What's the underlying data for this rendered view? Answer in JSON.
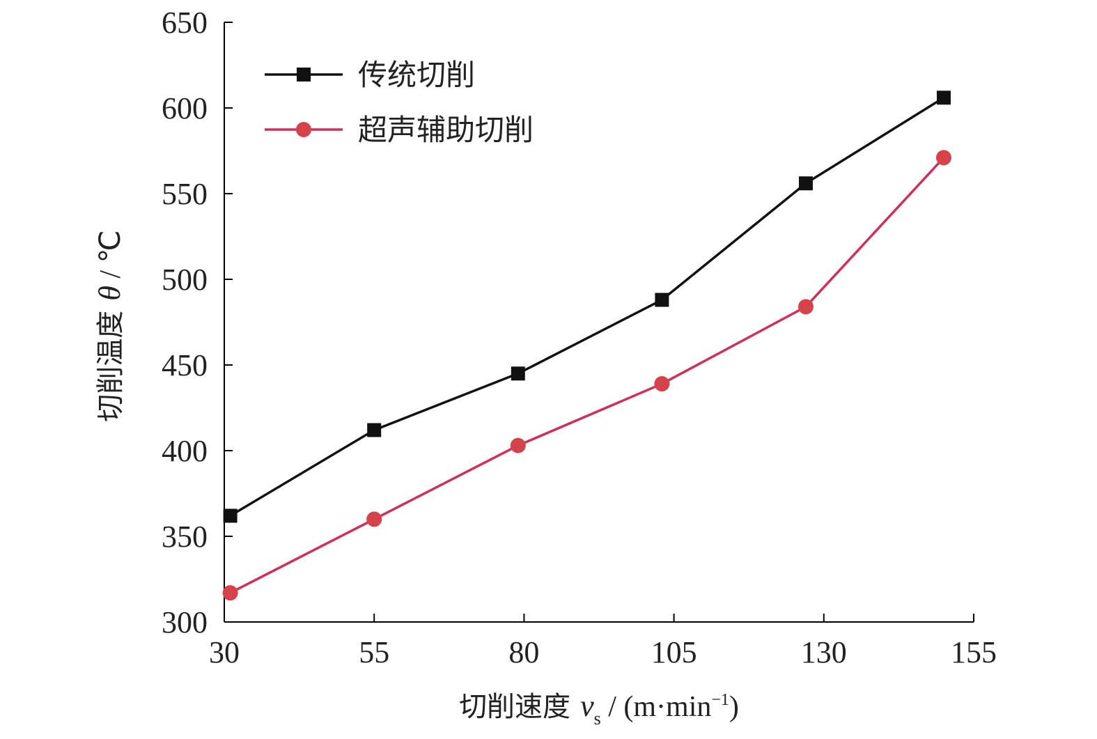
{
  "chart_data": {
    "type": "line",
    "x_label": "切削速度",
    "x_label_var": "v",
    "x_label_sub": "s",
    "x_label_unit": " / (m·min",
    "x_label_unit_sup": "−1",
    "x_label_unit_close": ")",
    "y_label": "切削温度",
    "y_label_var": "θ",
    "y_label_unit": " / ℃",
    "xlim": [
      30,
      155
    ],
    "ylim": [
      300,
      650
    ],
    "x_ticks": [
      30,
      55,
      80,
      105,
      130,
      155
    ],
    "y_ticks": [
      300,
      350,
      400,
      450,
      500,
      550,
      600,
      650
    ],
    "grid": false,
    "legend_position": "top-left",
    "series": [
      {
        "name": "传统切削",
        "color": "#111111",
        "marker": "square",
        "x": [
          31,
          55,
          79,
          103,
          127,
          150
        ],
        "y": [
          362,
          412,
          445,
          488,
          556,
          606
        ]
      },
      {
        "name": "超声辅助切削",
        "color": "#d22e5c",
        "marker_color": "#d5424a",
        "marker": "circle",
        "x": [
          31,
          55,
          79,
          103,
          127,
          150
        ],
        "y": [
          317,
          360,
          403,
          439,
          484,
          571
        ]
      }
    ]
  }
}
